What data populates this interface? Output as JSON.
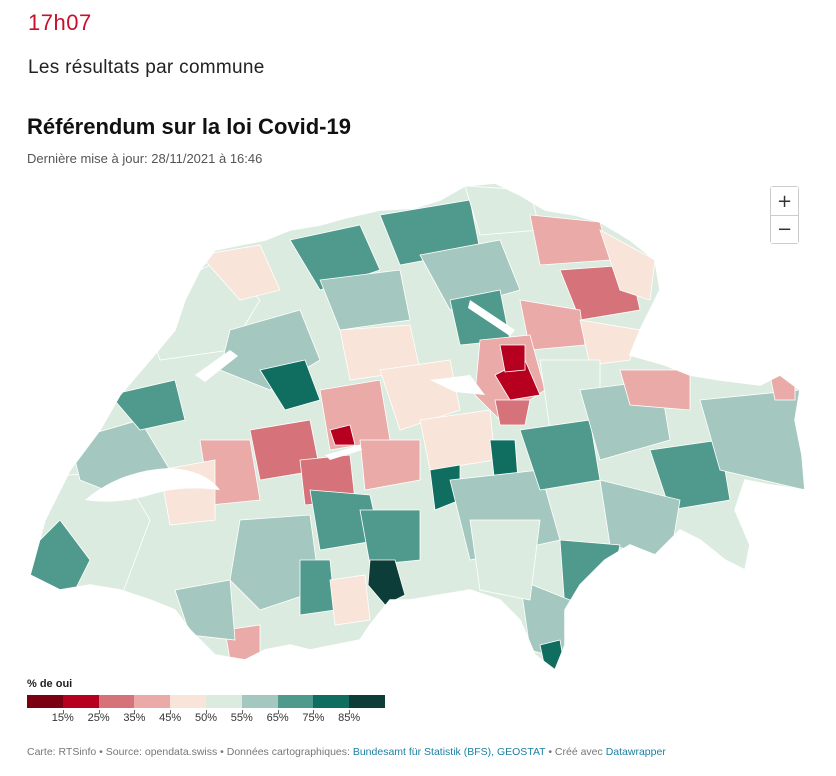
{
  "header": {
    "time": "17h07",
    "section": "Les résultats par commune"
  },
  "map": {
    "title": "Référendum sur la loi Covid-19",
    "updated": "Dernière mise à jour: 28/11/2021 à 16:46",
    "zoom_in": "+",
    "zoom_out": "−",
    "colors": {
      "dark_red": "#7a0012",
      "red": "#b70020",
      "mid_red": "#d6737a",
      "light_red": "#e9aaa8",
      "cream": "#f8e4d8",
      "pale_green": "#dcebdf",
      "soft_teal": "#a4c7c0",
      "teal": "#4f9a8d",
      "dark_teal": "#0f6e60",
      "darkest": "#0c3d38"
    }
  },
  "legend": {
    "title": "% de oui",
    "bins": [
      "#7a0012",
      "#b70020",
      "#d6737a",
      "#e9aaa8",
      "#f8e4d8",
      "#dcebdf",
      "#a4c7c0",
      "#4f9a8d",
      "#0f6e60",
      "#0c3d38"
    ],
    "ticks": [
      "15%",
      "25%",
      "35%",
      "45%",
      "50%",
      "55%",
      "65%",
      "75%",
      "85%"
    ]
  },
  "footer": {
    "prefix": "Carte: RTSinfo • Source: opendata.swiss • Données cartographiques: ",
    "link1": "Bundesamt für Statistik (BFS), GEOSTAT",
    "middle": " • Créé avec ",
    "link2": "Datawrapper"
  }
}
